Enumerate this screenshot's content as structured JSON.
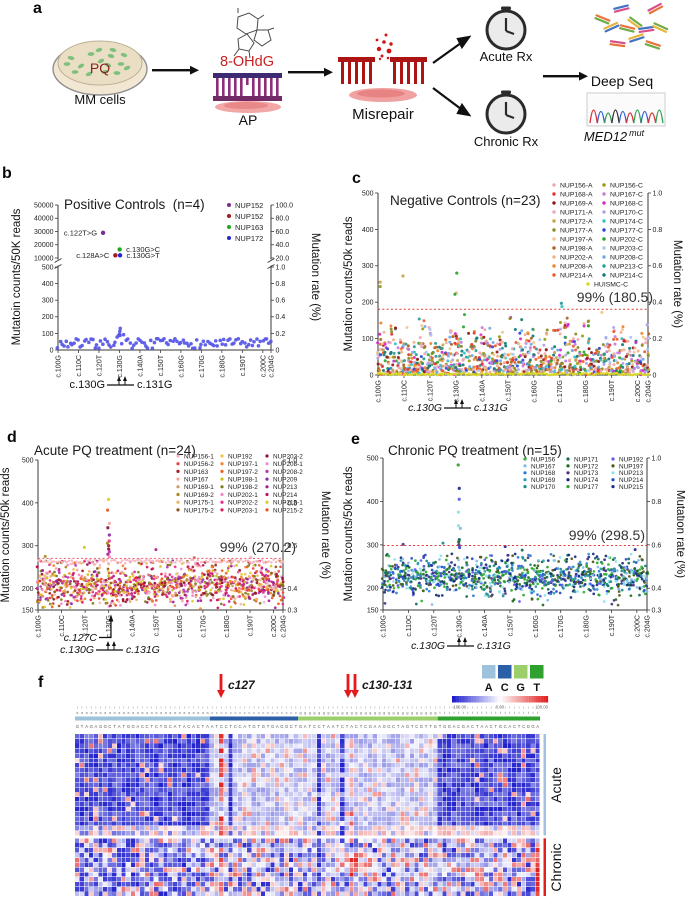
{
  "panels": {
    "a": {
      "label": "a"
    },
    "b": {
      "label": "b"
    },
    "c": {
      "label": "c"
    },
    "d": {
      "label": "d"
    },
    "e": {
      "label": "e"
    },
    "f": {
      "label": "f"
    }
  },
  "panel_a": {
    "pq": "PQ",
    "mm_cells": "MM cells",
    "ohdg": "8-OHdG",
    "ap": "AP",
    "misrepair": "Misrepair",
    "acute_rx": "Acute Rx",
    "chronic_rx": "Chronic Rx",
    "deep_seq": "Deep Seq",
    "med12": "MED12",
    "med12_sup": "mut"
  },
  "chart_data": [
    {
      "panel": "b",
      "type": "scatter",
      "title": "Positive Controls  (n=4)",
      "ylabel": "Mutatoin counts/50K reads",
      "ylabel_right": "Mutation rate (%)",
      "axis_break": true,
      "x_range": [
        100,
        204
      ],
      "xticks": [
        "c.100G",
        "c.110C",
        "c.120T",
        "c.130G",
        "c.140A",
        "c.150T",
        "c.160G",
        "c.170G",
        "c.180G",
        "c.190T",
        "c.200C",
        "c.204G"
      ],
      "xtick_pos": [
        100,
        110,
        120,
        130,
        140,
        150,
        160,
        170,
        180,
        190,
        200,
        204
      ],
      "yticks_lower": [
        0,
        100,
        200,
        300,
        400,
        500
      ],
      "yticks_upper": [
        10000,
        20000,
        30000,
        40000,
        50000
      ],
      "right_ticks_lower": [
        "0",
        "0.2",
        "0.4",
        "0.6",
        "0.8",
        "1.0"
      ],
      "right_ticks_upper": [
        "20.0",
        "40.0",
        "60.0",
        "80.0",
        "100.0"
      ],
      "legend": [
        {
          "label": "NUP152",
          "color": "#7B2D8E"
        },
        {
          "label": "NUP152",
          "color": "#A81818"
        },
        {
          "label": "NUP163",
          "color": "#1FA81F"
        },
        {
          "label": "NUP172",
          "color": "#2626CC"
        }
      ],
      "annotated_points": [
        {
          "label": "c.122T>G",
          "pos": 122,
          "value": 29000,
          "color": "#7B2D8E",
          "side": "left"
        },
        {
          "label": "c.130G>C",
          "pos": 130.1,
          "value": 16500,
          "color": "#1FA81F",
          "side": "right"
        },
        {
          "label": "c.128A>C",
          "pos": 128,
          "value": 12000,
          "color": "#A81818",
          "side": "left"
        },
        {
          "label": "c.130G>T",
          "pos": 130.3,
          "value": 12000,
          "color": "#2626CC",
          "side": "right"
        }
      ],
      "baseline_series": {
        "color": "#5A5AE8",
        "typical_range": [
          10,
          75
        ],
        "bump": {
          "pos": 130,
          "max": 130
        }
      },
      "x_annotation": {
        "left": "c.130G",
        "right": "c.131G"
      }
    },
    {
      "panel": "c",
      "type": "scatter",
      "title": "Negative Controls (n=23)",
      "ylabel": "Mutation counts/50k reads",
      "ylabel_right": "Mutation rate (%)",
      "x_range": [
        100,
        204
      ],
      "xticks": [
        "c.100G",
        "c.110C",
        "c.120T",
        "c.130G",
        "c.140A",
        "c.150T",
        "c.160G",
        "c.170G",
        "c.180G",
        "c.190T",
        "c.200C",
        "c.204G"
      ],
      "xtick_pos": [
        100,
        110,
        120,
        130,
        140,
        150,
        160,
        170,
        180,
        190,
        200,
        204
      ],
      "yticks": [
        0,
        100,
        200,
        300,
        400,
        500
      ],
      "right_ticks": [
        "0",
        "0.2",
        "0.4",
        "0.6",
        "0.8",
        "1.0"
      ],
      "threshold": {
        "value": 180.5,
        "label": "99% (180.5)",
        "color": "#E03A3A"
      },
      "legend_col_a": [
        {
          "label": "NUP156-A",
          "color": "#F2A8A8"
        },
        {
          "label": "NUP168-A",
          "color": "#E03535"
        },
        {
          "label": "NUP169-A",
          "color": "#8E1A1A"
        },
        {
          "label": "NUP171-A",
          "color": "#E8A8BC"
        },
        {
          "label": "NUP172-A",
          "color": "#C9A24B"
        },
        {
          "label": "NUP177-A",
          "color": "#8A8A1E"
        },
        {
          "label": "NUP197-A",
          "color": "#F5C58F"
        },
        {
          "label": "NUP198-A",
          "color": "#B06020"
        },
        {
          "label": "NUP202-A",
          "color": "#F4B08C"
        },
        {
          "label": "NUP208-A",
          "color": "#F08228"
        },
        {
          "label": "NUP214-A",
          "color": "#EF5B2A"
        }
      ],
      "legend_col_c": [
        {
          "label": "NUP156-C",
          "color": "#9A9A10"
        },
        {
          "label": "NUP167-C",
          "color": "#C77DDB"
        },
        {
          "label": "NUP168-C",
          "color": "#D62BC8"
        },
        {
          "label": "NUP170-C",
          "color": "#AFA2E8"
        },
        {
          "label": "NUP174-C",
          "color": "#35C2C2"
        },
        {
          "label": "NUP177-C",
          "color": "#2A46D8"
        },
        {
          "label": "NUP202-C",
          "color": "#2AA52A"
        },
        {
          "label": "NUP203-C",
          "color": "#A9C6F2"
        },
        {
          "label": "NUP208-C",
          "color": "#6FA8E8"
        },
        {
          "label": "NUP213-C",
          "color": "#2A9A9A"
        },
        {
          "label": "NUP214-C",
          "color": "#137878"
        }
      ],
      "legend_extra": {
        "label": "HUISMC-C",
        "color": "#D9D920"
      },
      "band": {
        "typical_range": [
          0,
          165
        ],
        "distribution": "right-skewed"
      },
      "outliers": [
        {
          "pos": 101,
          "values": [
            255,
            243
          ]
        },
        {
          "pos": 110,
          "values": [
            272
          ]
        },
        {
          "pos": 130,
          "values": [
            280,
            226,
            222
          ]
        },
        {
          "pos": 171,
          "values": [
            197,
            188
          ]
        },
        {
          "pos": 186,
          "values": [
            172
          ]
        }
      ],
      "x_annotation": {
        "left": "c.130G",
        "right": "c.131G"
      }
    },
    {
      "panel": "d",
      "type": "scatter",
      "title": "Acute PQ treatment (n=24)",
      "ylabel": "Mutation counts/50k reads",
      "ylabel_right": "Mutation rate (%)",
      "x_range": [
        100,
        204
      ],
      "xticks": [
        "c.100G",
        "c.110C",
        "c.120T",
        "c.130G",
        "c.140A",
        "c.150T",
        "c.160G",
        "c.170G",
        "c.180G",
        "c.190T",
        "c.200C",
        "c.204G"
      ],
      "xtick_pos": [
        100,
        110,
        120,
        130,
        140,
        150,
        160,
        170,
        180,
        190,
        200,
        204
      ],
      "yticks": [
        150,
        200,
        300,
        400,
        500
      ],
      "right_ticks": [
        "0.3",
        "0.4",
        "0.6",
        "0.8",
        "1.0"
      ],
      "threshold": {
        "value": 270.2,
        "label": "99% (270.2)",
        "color": "#E8707D"
      },
      "legend_col_1": [
        {
          "label": "NUP156-1",
          "color": "#F7B6C2"
        },
        {
          "label": "NUP156-2",
          "color": "#E84545"
        },
        {
          "label": "NUP163",
          "color": "#A31B1B"
        },
        {
          "label": "NUP167",
          "color": "#F2A89E"
        },
        {
          "label": "NUP169-1",
          "color": "#D09A5E"
        },
        {
          "label": "NUP169-2",
          "color": "#A8861E"
        },
        {
          "label": "NUP175-1",
          "color": "#F2B05E"
        },
        {
          "label": "NUP175-2",
          "color": "#8F5415"
        }
      ],
      "legend_col_2": [
        {
          "label": "NUP192",
          "color": "#F0C050"
        },
        {
          "label": "NUP197-1",
          "color": "#F08430"
        },
        {
          "label": "NUP197-2",
          "color": "#E86418"
        },
        {
          "label": "NUP198-1",
          "color": "#C9C21E"
        },
        {
          "label": "NUP198-2",
          "color": "#7D7D20"
        },
        {
          "label": "NUP202-1",
          "color": "#F287C6"
        },
        {
          "label": "NUP202-2",
          "color": "#EA2D8C"
        },
        {
          "label": "NUP203-1",
          "color": "#DB1A5E"
        }
      ],
      "legend_col_3": [
        {
          "label": "NUP203-2",
          "color": "#8E1238"
        },
        {
          "label": "NUP208-1",
          "color": "#E794DC"
        },
        {
          "label": "NUP208-2",
          "color": "#B434B4"
        },
        {
          "label": "NUP209",
          "color": "#8A2AA8"
        },
        {
          "label": "NUP213",
          "color": "#A81A92"
        },
        {
          "label": "NUP214",
          "color": "#C21264"
        },
        {
          "label": "NUP215-1",
          "color": "#D9CC26"
        },
        {
          "label": "NUP215-2",
          "color": "#EA5526"
        }
      ],
      "band": {
        "typical_range": [
          150,
          268
        ]
      },
      "spike": {
        "pos": 130,
        "values": [
          408,
          383,
          352,
          342,
          325,
          311,
          306,
          300,
          292,
          286,
          280,
          274
        ]
      },
      "outliers": [
        {
          "pos": 120,
          "values": [
            296
          ]
        },
        {
          "pos": 150,
          "values": [
            291
          ]
        },
        {
          "pos": 103,
          "values": [
            275
          ]
        },
        {
          "pos": 166,
          "values": [
            272
          ]
        },
        {
          "pos": 190,
          "values": [
            273
          ]
        }
      ],
      "x_annotation": {
        "arrow_label": "c.127C",
        "arrow_pos": 127,
        "left": "c.130G",
        "right": "c.131G"
      }
    },
    {
      "panel": "e",
      "type": "scatter",
      "title": "Chronic PQ treatment (n=15)",
      "ylabel": "Mutation counts/50k reads",
      "ylabel_right": "Mutation rate (%)",
      "x_range": [
        100,
        204
      ],
      "xticks": [
        "c.100G",
        "c.110C",
        "c.120T",
        "c.130G",
        "c.140A",
        "c.150T",
        "c.160G",
        "c.170G",
        "c.180G",
        "c.190T",
        "c.200C",
        "c.204G"
      ],
      "xtick_pos": [
        100,
        110,
        120,
        130,
        140,
        150,
        160,
        170,
        180,
        190,
        200,
        204
      ],
      "yticks": [
        150,
        200,
        300,
        400,
        500
      ],
      "right_ticks": [
        "0.3",
        "0.4",
        "0.6",
        "0.8",
        "1.0"
      ],
      "threshold": {
        "value": 298.5,
        "label": "99% (298.5)",
        "color": "#E03A3A"
      },
      "legend_col_1": [
        {
          "label": "NUP156",
          "color": "#34B034"
        },
        {
          "label": "NUP167",
          "color": "#7FBCEA"
        },
        {
          "label": "NUP168",
          "color": "#2A7AD4"
        },
        {
          "label": "NUP169",
          "color": "#2E9ABB"
        },
        {
          "label": "NUP170",
          "color": "#1A8A8A"
        }
      ],
      "legend_col_2": [
        {
          "label": "NUP171",
          "color": "#126B5B"
        },
        {
          "label": "NUP172",
          "color": "#1A6B1A"
        },
        {
          "label": "NUP173",
          "color": "#44307E"
        },
        {
          "label": "NUP174",
          "color": "#122C74"
        },
        {
          "label": "NUP177",
          "color": "#2AA42A"
        }
      ],
      "legend_col_3": [
        {
          "label": "NUP192",
          "color": "#5A5AEA"
        },
        {
          "label": "NUP197",
          "color": "#4E5A1A"
        },
        {
          "label": "NUP213",
          "color": "#8FE2EA"
        },
        {
          "label": "NUP214",
          "color": "#2A4ACA"
        },
        {
          "label": "NUP215",
          "color": "#1A2A8E"
        }
      ],
      "band": {
        "typical_range": [
          152,
          282
        ]
      },
      "spike": {
        "pos": 130,
        "values": [
          484,
          430,
          405,
          375,
          344,
          338,
          312,
          307,
          300,
          294
        ]
      },
      "outliers": [
        {
          "pos": 108,
          "values": [
            301
          ]
        },
        {
          "pos": 124,
          "values": [
            304
          ]
        },
        {
          "pos": 148,
          "values": [
            296
          ]
        },
        {
          "pos": 155,
          "values": [
            288
          ]
        },
        {
          "pos": 199,
          "values": [
            289
          ]
        }
      ],
      "x_annotation": {
        "left": "c.130G",
        "right": "c.131G"
      }
    },
    {
      "panel": "f",
      "type": "heatmap",
      "rows_acute": 21,
      "rows_chronic": 12,
      "cols": 100,
      "col_groups": [
        {
          "base": "A",
          "color": "#9DC3DC",
          "span": [
            0,
            28
          ]
        },
        {
          "base": "C",
          "color": "#2B5FA8",
          "span": [
            29,
            47
          ]
        },
        {
          "base": "G",
          "color": "#9CCF6B",
          "span": [
            48,
            77
          ]
        },
        {
          "base": "T",
          "color": "#2EA12E",
          "span": [
            78,
            99
          ]
        }
      ],
      "base_legend": [
        "A",
        "C",
        "G",
        "T"
      ],
      "scale_labels": [
        "-100.00",
        "0.00",
        "100.00"
      ],
      "annotations": [
        {
          "label": "c127",
          "arrow_count": 1,
          "col": 31
        },
        {
          "label": "c130-131",
          "arrow_count": 2,
          "col": 59
        }
      ],
      "row_groups": [
        {
          "label": "Acute",
          "color": "#9DC3E6"
        },
        {
          "label": "Chronic",
          "color": "#E02020"
        }
      ],
      "colormap": {
        "negative": "#1E1ECD",
        "zero": "#FFFFFF",
        "positive": "#E11E1E"
      }
    }
  ]
}
